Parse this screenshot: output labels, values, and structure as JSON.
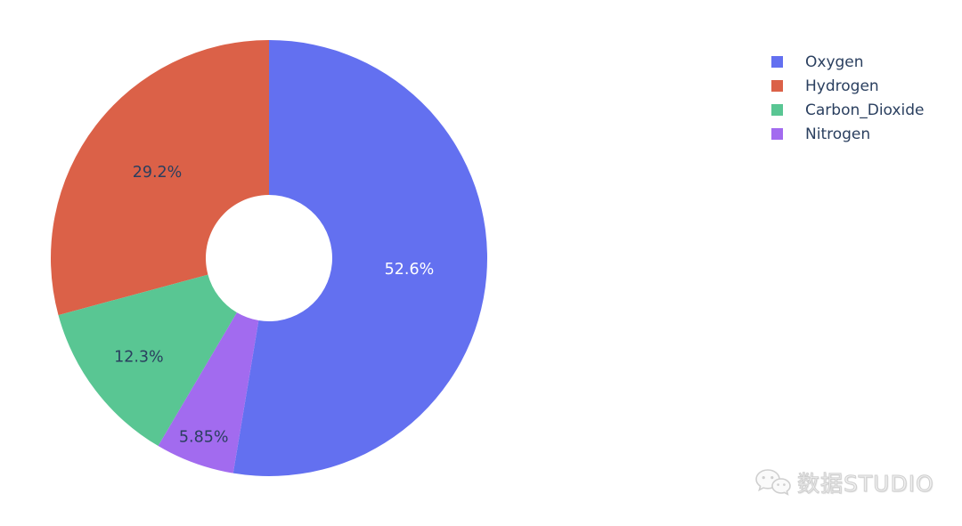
{
  "page": {
    "background_color": "#ffffff"
  },
  "chart_data": {
    "type": "pie",
    "subtype": "donut",
    "labels": [
      "Oxygen",
      "Hydrogen",
      "Carbon_Dioxide",
      "Nitrogen"
    ],
    "values_percent": [
      52.6,
      29.2,
      12.3,
      5.85
    ],
    "slice_labels": [
      "52.6%",
      "29.2%",
      "12.3%",
      "5.85%"
    ],
    "colors": [
      "#6370F0",
      "#DB6148",
      "#59C693",
      "#A26BEF"
    ],
    "slice_label_colors": [
      "#ffffff",
      "#2a3f5f",
      "#2a3f5f",
      "#2a3f5f"
    ],
    "hole_ratio": 0.29,
    "title": "",
    "legend": {
      "position": "top-right",
      "text_color": "#2a3f5f"
    }
  },
  "watermark": {
    "text": "数据STUDIO",
    "icon": "wechat-icon",
    "color": "#d9d9d9"
  }
}
